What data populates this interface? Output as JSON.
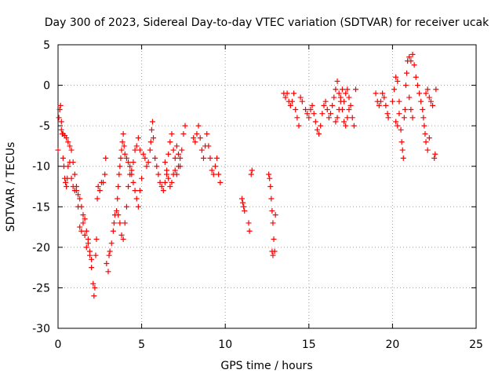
{
  "chart_data": {
    "type": "scatter",
    "title": "Day 300 of 2023, Sidereal Day-to-day VTEC variation (SDTVAR) for receiver ucak",
    "xlabel": "GPS time / hours",
    "ylabel": "SDTVAR / TECUs",
    "xlim": [
      0,
      25
    ],
    "ylim": [
      -30,
      5
    ],
    "xticks": [
      0,
      5,
      10,
      15,
      20,
      25
    ],
    "yticks": [
      5,
      0,
      -5,
      -10,
      -15,
      -20,
      -25,
      -30
    ],
    "grid": true,
    "marker": "+",
    "series_color": "#ff0000",
    "series": [
      {
        "name": "SDTVAR",
        "points": [
          [
            0.0,
            -8.0
          ],
          [
            0.05,
            -4.0
          ],
          [
            0.1,
            -3.0
          ],
          [
            0.15,
            -2.5
          ],
          [
            0.2,
            -4.5
          ],
          [
            0.25,
            -6.0
          ],
          [
            0.3,
            -9.0
          ],
          [
            0.35,
            -10.0
          ],
          [
            0.4,
            -11.5
          ],
          [
            0.45,
            -12.0
          ],
          [
            0.5,
            -12.5
          ],
          [
            0.55,
            -11.5
          ],
          [
            0.6,
            -10.0
          ],
          [
            0.7,
            -9.5
          ],
          [
            0.8,
            -11.5
          ],
          [
            0.9,
            -12.5
          ],
          [
            1.0,
            -13.0
          ],
          [
            1.1,
            -12.5
          ],
          [
            1.2,
            -13.5
          ],
          [
            1.3,
            -14.0
          ],
          [
            1.4,
            -15.0
          ],
          [
            1.5,
            -16.0
          ],
          [
            1.6,
            -18.5
          ],
          [
            1.7,
            -20.0
          ],
          [
            1.8,
            -19.0
          ],
          [
            1.9,
            -21.0
          ],
          [
            2.0,
            -22.5
          ],
          [
            2.1,
            -24.5
          ],
          [
            2.15,
            -26.0
          ],
          [
            2.2,
            -25.0
          ],
          [
            2.25,
            -21.0
          ],
          [
            2.3,
            -19.0
          ],
          [
            2.35,
            -14.0
          ],
          [
            2.4,
            -12.5
          ],
          [
            2.5,
            -13.0
          ],
          [
            2.6,
            -12.0
          ],
          [
            2.7,
            -12.0
          ],
          [
            2.8,
            -11.0
          ],
          [
            2.85,
            -9.0
          ],
          [
            0.2,
            -5.5
          ],
          [
            0.3,
            -6.0
          ],
          [
            0.4,
            -6.2
          ],
          [
            0.5,
            -6.5
          ],
          [
            0.6,
            -7.0
          ],
          [
            0.7,
            -7.5
          ],
          [
            0.8,
            -8.0
          ],
          [
            0.9,
            -9.5
          ],
          [
            1.0,
            -11.0
          ],
          [
            1.1,
            -13.0
          ],
          [
            1.2,
            -15.0
          ],
          [
            1.3,
            -17.5
          ],
          [
            1.4,
            -18.0
          ],
          [
            1.5,
            -17.0
          ],
          [
            1.6,
            -16.5
          ],
          [
            1.7,
            -18.0
          ],
          [
            1.8,
            -19.5
          ],
          [
            1.9,
            -20.5
          ],
          [
            2.0,
            -21.5
          ],
          [
            2.9,
            -22.0
          ],
          [
            3.0,
            -23.0
          ],
          [
            3.05,
            -21.0
          ],
          [
            3.1,
            -20.5
          ],
          [
            3.2,
            -19.5
          ],
          [
            3.3,
            -18.0
          ],
          [
            3.35,
            -17.0
          ],
          [
            3.4,
            -16.0
          ],
          [
            3.5,
            -15.5
          ],
          [
            3.55,
            -14.0
          ],
          [
            3.6,
            -12.5
          ],
          [
            3.65,
            -11.0
          ],
          [
            3.7,
            -10.0
          ],
          [
            3.75,
            -9.0
          ],
          [
            3.8,
            -8.0
          ],
          [
            3.85,
            -7.0
          ],
          [
            3.9,
            -6.0
          ],
          [
            3.95,
            -7.5
          ],
          [
            4.0,
            -8.5
          ],
          [
            4.1,
            -9.0
          ],
          [
            4.2,
            -9.5
          ],
          [
            4.3,
            -10.0
          ],
          [
            4.4,
            -11.0
          ],
          [
            4.5,
            -12.0
          ],
          [
            4.6,
            -13.0
          ],
          [
            4.7,
            -14.0
          ],
          [
            4.8,
            -15.0
          ],
          [
            4.9,
            -13.0
          ],
          [
            5.0,
            -11.5
          ],
          [
            3.6,
            -16.0
          ],
          [
            3.7,
            -17.0
          ],
          [
            3.8,
            -18.5
          ],
          [
            3.9,
            -19.0
          ],
          [
            4.0,
            -17.0
          ],
          [
            4.1,
            -15.0
          ],
          [
            4.2,
            -12.5
          ],
          [
            4.3,
            -11.0
          ],
          [
            4.4,
            -10.5
          ],
          [
            4.5,
            -9.5
          ],
          [
            4.6,
            -8.0
          ],
          [
            4.7,
            -7.5
          ],
          [
            4.8,
            -6.5
          ],
          [
            4.9,
            -8.0
          ],
          [
            5.1,
            -8.5
          ],
          [
            5.2,
            -9.0
          ],
          [
            5.3,
            -10.0
          ],
          [
            5.4,
            -9.5
          ],
          [
            5.5,
            -8.0
          ],
          [
            5.55,
            -7.0
          ],
          [
            5.6,
            -5.5
          ],
          [
            5.65,
            -4.5
          ],
          [
            5.7,
            -6.5
          ],
          [
            5.8,
            -9.0
          ],
          [
            5.9,
            -10.0
          ],
          [
            6.0,
            -11.0
          ],
          [
            6.1,
            -12.0
          ],
          [
            6.2,
            -12.5
          ],
          [
            6.3,
            -13.0
          ],
          [
            6.4,
            -12.0
          ],
          [
            6.5,
            -11.0
          ],
          [
            6.6,
            -8.5
          ],
          [
            6.7,
            -7.0
          ],
          [
            6.8,
            -6.0
          ],
          [
            6.9,
            -8.0
          ],
          [
            7.0,
            -10.5
          ],
          [
            7.1,
            -11.0
          ],
          [
            7.2,
            -10.0
          ],
          [
            7.3,
            -9.0
          ],
          [
            7.4,
            -8.0
          ],
          [
            7.5,
            -6.0
          ],
          [
            7.6,
            -5.0
          ],
          [
            6.4,
            -9.5
          ],
          [
            6.5,
            -10.5
          ],
          [
            6.6,
            -11.5
          ],
          [
            6.7,
            -12.5
          ],
          [
            6.8,
            -12.0
          ],
          [
            6.9,
            -11.0
          ],
          [
            7.0,
            -9.0
          ],
          [
            7.1,
            -7.5
          ],
          [
            7.2,
            -8.5
          ],
          [
            7.3,
            -10.0
          ],
          [
            8.1,
            -6.5
          ],
          [
            8.2,
            -7.0
          ],
          [
            8.3,
            -6.0
          ],
          [
            8.4,
            -5.0
          ],
          [
            8.5,
            -6.5
          ],
          [
            8.6,
            -8.0
          ],
          [
            8.7,
            -9.0
          ],
          [
            8.8,
            -7.5
          ],
          [
            8.9,
            -6.0
          ],
          [
            9.0,
            -7.5
          ],
          [
            9.1,
            -9.0
          ],
          [
            9.2,
            -10.5
          ],
          [
            9.3,
            -11.0
          ],
          [
            9.4,
            -10.0
          ],
          [
            9.5,
            -9.0
          ],
          [
            9.6,
            -11.0
          ],
          [
            9.7,
            -12.0
          ],
          [
            11.0,
            -14.0
          ],
          [
            11.05,
            -14.5
          ],
          [
            11.1,
            -15.0
          ],
          [
            11.15,
            -15.5
          ],
          [
            11.4,
            -17.0
          ],
          [
            11.45,
            -18.0
          ],
          [
            11.55,
            -11.0
          ],
          [
            11.6,
            -10.5
          ],
          [
            12.6,
            -11.0
          ],
          [
            12.65,
            -11.5
          ],
          [
            12.7,
            -12.5
          ],
          [
            12.75,
            -14.0
          ],
          [
            12.8,
            -15.5
          ],
          [
            12.85,
            -17.0
          ],
          [
            12.9,
            -19.0
          ],
          [
            12.95,
            -20.5
          ],
          [
            13.0,
            -16.0
          ],
          [
            12.8,
            -20.5
          ],
          [
            12.85,
            -21.0
          ],
          [
            13.5,
            -1.0
          ],
          [
            13.6,
            -1.5
          ],
          [
            13.7,
            -1.0
          ],
          [
            13.8,
            -2.0
          ],
          [
            13.9,
            -2.5
          ],
          [
            14.0,
            -2.0
          ],
          [
            14.1,
            -1.0
          ],
          [
            14.2,
            -3.0
          ],
          [
            14.3,
            -4.0
          ],
          [
            14.4,
            -5.0
          ],
          [
            14.5,
            -1.5
          ],
          [
            14.6,
            -2.0
          ],
          [
            14.8,
            -3.0
          ],
          [
            14.9,
            -3.5
          ],
          [
            15.0,
            -4.0
          ],
          [
            15.1,
            -3.0
          ],
          [
            15.2,
            -2.5
          ],
          [
            15.3,
            -3.5
          ],
          [
            15.4,
            -4.5
          ],
          [
            15.5,
            -5.5
          ],
          [
            15.6,
            -6.0
          ],
          [
            15.7,
            -5.0
          ],
          [
            15.8,
            -3.5
          ],
          [
            15.9,
            -2.5
          ],
          [
            16.0,
            -2.0
          ],
          [
            16.1,
            -3.0
          ],
          [
            16.2,
            -4.0
          ],
          [
            16.3,
            -3.5
          ],
          [
            16.4,
            -2.5
          ],
          [
            16.5,
            -1.5
          ],
          [
            16.6,
            -0.5
          ],
          [
            16.7,
            0.5
          ],
          [
            16.8,
            -1.0
          ],
          [
            16.9,
            -2.0
          ],
          [
            17.0,
            -3.0
          ],
          [
            17.1,
            -2.0
          ],
          [
            17.2,
            -1.0
          ],
          [
            17.3,
            -0.5
          ],
          [
            17.4,
            -1.5
          ],
          [
            17.5,
            -2.5
          ],
          [
            17.6,
            -4.0
          ],
          [
            17.7,
            -5.0
          ],
          [
            17.8,
            -0.5
          ],
          [
            16.6,
            -4.5
          ],
          [
            16.7,
            -4.0
          ],
          [
            16.8,
            -3.0
          ],
          [
            16.9,
            -1.5
          ],
          [
            17.0,
            -0.5
          ],
          [
            17.1,
            -4.5
          ],
          [
            17.2,
            -5.0
          ],
          [
            17.3,
            -4.0
          ],
          [
            17.4,
            -3.0
          ],
          [
            19.0,
            -1.0
          ],
          [
            19.1,
            -2.0
          ],
          [
            19.2,
            -2.5
          ],
          [
            19.3,
            -2.0
          ],
          [
            19.4,
            -1.0
          ],
          [
            19.5,
            -1.5
          ],
          [
            19.6,
            -2.5
          ],
          [
            19.7,
            -3.5
          ],
          [
            19.75,
            -4.0
          ],
          [
            20.0,
            -2.0
          ],
          [
            20.1,
            -0.5
          ],
          [
            20.2,
            1.0
          ],
          [
            20.3,
            0.5
          ],
          [
            20.4,
            -2.0
          ],
          [
            20.5,
            -5.5
          ],
          [
            20.55,
            -7.0
          ],
          [
            20.6,
            -8.0
          ],
          [
            20.65,
            -9.0
          ],
          [
            20.7,
            -4.0
          ],
          [
            20.75,
            -3.0
          ],
          [
            20.8,
            0.0
          ],
          [
            20.85,
            1.5
          ],
          [
            20.9,
            3.0
          ],
          [
            21.0,
            3.5
          ],
          [
            21.1,
            3.0
          ],
          [
            21.2,
            3.8
          ],
          [
            21.3,
            2.5
          ],
          [
            21.4,
            1.0
          ],
          [
            21.5,
            0.0
          ],
          [
            21.6,
            -1.0
          ],
          [
            21.7,
            -2.0
          ],
          [
            20.2,
            -4.5
          ],
          [
            20.3,
            -5.0
          ],
          [
            20.4,
            -3.5
          ],
          [
            21.0,
            -1.5
          ],
          [
            21.1,
            -3.0
          ],
          [
            21.2,
            -4.0
          ],
          [
            21.8,
            -3.0
          ],
          [
            21.85,
            -4.0
          ],
          [
            21.9,
            -5.0
          ],
          [
            21.95,
            -6.0
          ],
          [
            22.0,
            -7.0
          ],
          [
            22.1,
            -8.0
          ],
          [
            22.2,
            -6.5
          ],
          [
            22.0,
            -1.0
          ],
          [
            22.1,
            -0.5
          ],
          [
            22.2,
            -1.5
          ],
          [
            22.3,
            -2.0
          ],
          [
            22.4,
            -2.5
          ],
          [
            22.5,
            -9.0
          ],
          [
            22.55,
            -8.5
          ],
          [
            22.6,
            -0.5
          ]
        ]
      }
    ]
  }
}
